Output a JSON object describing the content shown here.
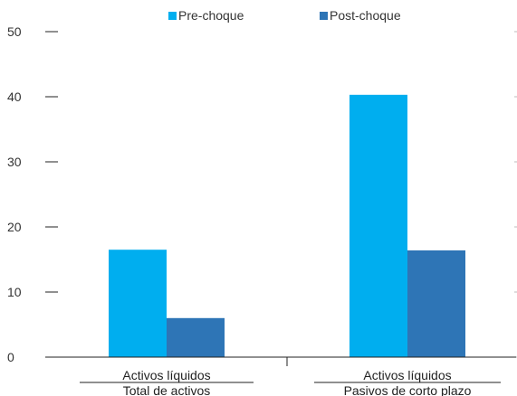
{
  "chart_data": {
    "type": "bar",
    "categories": [
      {
        "numerator": "Activos líquidos",
        "denominator": "Total de activos"
      },
      {
        "numerator": "Activos líquidos",
        "denominator": "Pasivos de corto plazo"
      }
    ],
    "series": [
      {
        "name": "Pre-choque",
        "color": "#00AEEF",
        "values": [
          16.5,
          40.3
        ]
      },
      {
        "name": "Post-choque",
        "color": "#2E75B6",
        "values": [
          6.0,
          16.4
        ]
      }
    ],
    "yticks": [
      0,
      10,
      20,
      30,
      40,
      50
    ],
    "ylim": [
      0,
      50
    ],
    "legend_position": "top-center",
    "grid": false
  }
}
